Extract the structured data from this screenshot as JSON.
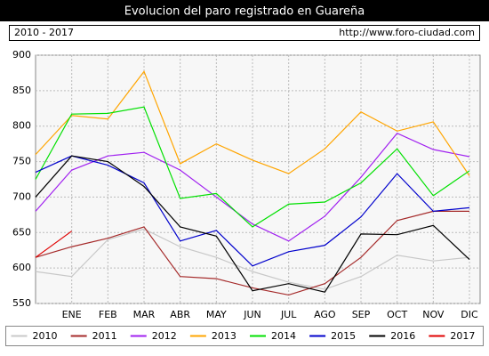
{
  "chart_data": {
    "type": "line",
    "title": "Evolucion del paro registrado en Guareña",
    "subtitle": "2010 - 2017",
    "source": "http://www.foro-ciudad.com",
    "categories": [
      null,
      "ENE",
      "FEB",
      "MAR",
      "ABR",
      "MAY",
      "JUN",
      "JUL",
      "AGO",
      "SEP",
      "OCT",
      "NOV",
      "DIC"
    ],
    "ylim": [
      550,
      900
    ],
    "yticks": [
      550,
      600,
      650,
      700,
      750,
      800,
      850,
      900
    ],
    "grid": true,
    "legend": "bottom",
    "series": [
      {
        "name": "2010",
        "color": "#c8c8c8",
        "values": [
          595,
          588,
          640,
          655,
          630,
          615,
          595,
          580,
          570,
          588,
          618,
          610,
          615
        ]
      },
      {
        "name": "2011",
        "color": "#a52a2a",
        "values": [
          615,
          630,
          642,
          658,
          588,
          585,
          572,
          562,
          578,
          615,
          667,
          680,
          680
        ]
      },
      {
        "name": "2012",
        "color": "#a020f0",
        "values": [
          680,
          738,
          758,
          763,
          738,
          700,
          662,
          638,
          673,
          728,
          790,
          767,
          757
        ]
      },
      {
        "name": "2013",
        "color": "#ffa500",
        "values": [
          760,
          815,
          810,
          877,
          747,
          775,
          752,
          733,
          768,
          820,
          793,
          806,
          730
        ]
      },
      {
        "name": "2014",
        "color": "#00e000",
        "values": [
          725,
          817,
          818,
          827,
          698,
          705,
          658,
          690,
          693,
          720,
          768,
          702,
          737
        ]
      },
      {
        "name": "2015",
        "color": "#0000cc",
        "values": [
          735,
          758,
          745,
          720,
          638,
          653,
          603,
          623,
          632,
          672,
          733,
          680,
          685
        ]
      },
      {
        "name": "2016",
        "color": "#000000",
        "values": [
          700,
          758,
          750,
          715,
          658,
          645,
          568,
          578,
          566,
          648,
          647,
          660,
          612
        ]
      },
      {
        "name": "2017",
        "color": "#e00000",
        "values": [
          615,
          652,
          null,
          null,
          null,
          null,
          null,
          null,
          null,
          null,
          null,
          null,
          null
        ]
      }
    ]
  }
}
